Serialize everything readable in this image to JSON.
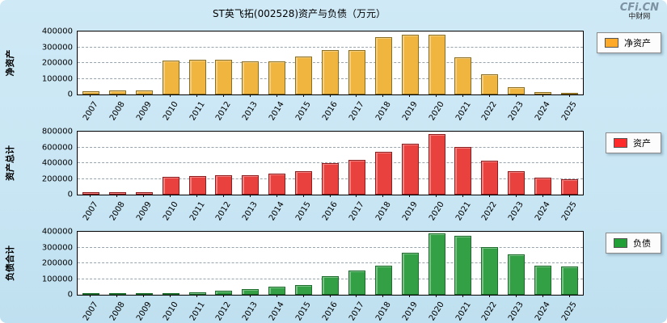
{
  "header": {
    "title": "ST英飞拓(002528)资产与负债（万元）",
    "watermark": {
      "brand": "CFi.CN",
      "sub": "中财网"
    }
  },
  "chart_data": [
    {
      "type": "bar",
      "title": "净资产",
      "ylabel": "净资产",
      "legend": "净资产",
      "categories": [
        "2007",
        "2008",
        "2009",
        "2010",
        "2011",
        "2012",
        "2013",
        "2014",
        "2015",
        "2016",
        "2017",
        "2018",
        "2019",
        "2020",
        "2021",
        "2022",
        "2023",
        "2024",
        "2025"
      ],
      "values": [
        20000,
        25000,
        28000,
        215000,
        222000,
        220000,
        208000,
        210000,
        242000,
        280000,
        282000,
        362000,
        378000,
        380000,
        238000,
        128000,
        45000,
        15000,
        12000
      ],
      "ylim": [
        0,
        400000
      ],
      "yticks": [
        0,
        100000,
        200000,
        300000,
        400000
      ],
      "grid": "dashed-horizontal",
      "legend_position": "right-top",
      "bar_color": "#F0B53E",
      "bar_edge": "#8a6d1e",
      "legend_color": "#FFA929"
    },
    {
      "type": "bar",
      "title": "资产总计",
      "ylabel": "资产总计",
      "legend": "资产",
      "categories": [
        "2007",
        "2008",
        "2009",
        "2010",
        "2011",
        "2012",
        "2013",
        "2014",
        "2015",
        "2016",
        "2017",
        "2018",
        "2019",
        "2020",
        "2021",
        "2022",
        "2023",
        "2024",
        "2025"
      ],
      "values": [
        28000,
        30000,
        35000,
        225000,
        232000,
        248000,
        250000,
        262000,
        300000,
        398000,
        440000,
        548000,
        650000,
        770000,
        610000,
        430000,
        302000,
        212000,
        195000
      ],
      "ylim": [
        0,
        800000
      ],
      "yticks": [
        0,
        200000,
        400000,
        600000,
        800000
      ],
      "grid": "dashed-horizontal",
      "legend_position": "right-top",
      "bar_color": "#E8413E",
      "bar_edge": "#8f1d1d",
      "legend_color": "#FF2A2A"
    },
    {
      "type": "bar",
      "title": "负债合计",
      "ylabel": "负债合计",
      "legend": "负债",
      "categories": [
        "2007",
        "2008",
        "2009",
        "2010",
        "2011",
        "2012",
        "2013",
        "2014",
        "2015",
        "2016",
        "2017",
        "2018",
        "2019",
        "2020",
        "2021",
        "2022",
        "2023",
        "2024",
        "2025"
      ],
      "values": [
        5000,
        6000,
        8000,
        10000,
        13000,
        26000,
        38000,
        50000,
        62000,
        120000,
        152000,
        185000,
        265000,
        390000,
        372000,
        302000,
        255000,
        185000,
        180000
      ],
      "ylim": [
        0,
        400000
      ],
      "yticks": [
        0,
        100000,
        200000,
        300000,
        400000
      ],
      "grid": "dashed-horizontal",
      "legend_position": "right-top",
      "bar_color": "#33A046",
      "bar_edge": "#1d6e2c",
      "legend_color": "#21A037"
    }
  ]
}
